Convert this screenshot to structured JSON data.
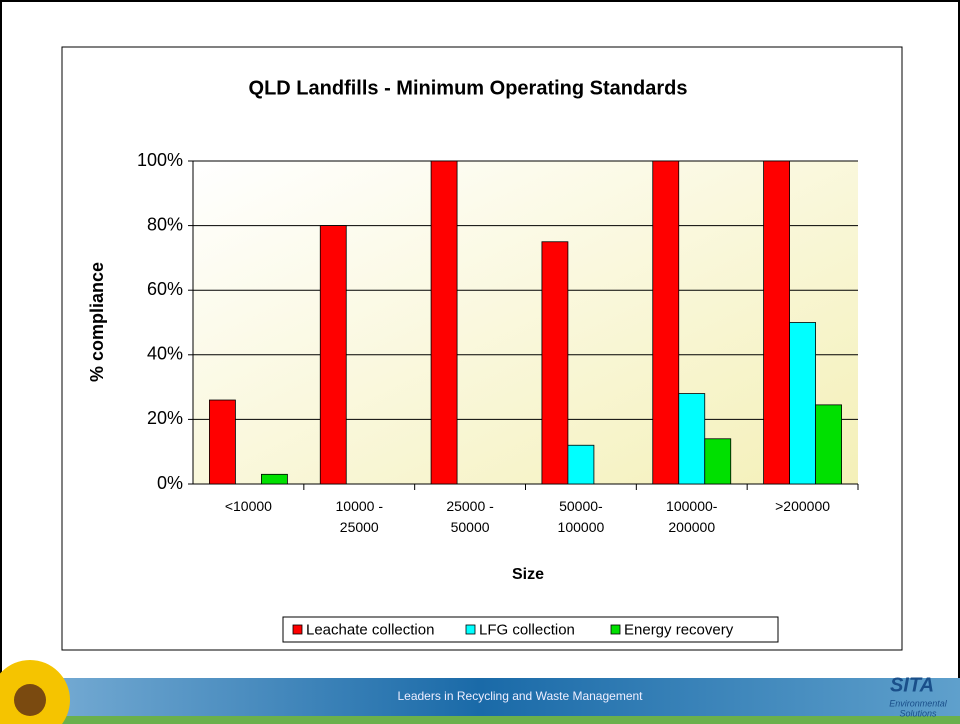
{
  "chart_data": {
    "type": "bar",
    "title": "QLD Landfills - Minimum Operating  Standards",
    "xlabel": "Size",
    "ylabel": "% compliance",
    "categories": [
      "<10000",
      "10000 - 25000",
      "25000 - 50000",
      "50000- 100000",
      "100000- 200000",
      ">200000"
    ],
    "series": [
      {
        "name": "Leachate collection",
        "color": "#ff0000",
        "values": [
          26,
          80,
          100,
          75,
          100,
          100
        ]
      },
      {
        "name": "LFG collection",
        "color": "#00ffff",
        "values": [
          0,
          0,
          0,
          12,
          28,
          50
        ]
      },
      {
        "name": "Energy recovery",
        "color": "#00e000",
        "values": [
          3,
          0,
          0,
          0,
          14,
          24.5
        ]
      }
    ],
    "ylim": [
      0,
      100
    ],
    "yticks": [
      {
        "value": 0,
        "label": "0%"
      },
      {
        "value": 20,
        "label": "20%"
      },
      {
        "value": 40,
        "label": "40%"
      },
      {
        "value": 60,
        "label": "60%"
      },
      {
        "value": 80,
        "label": "80%"
      },
      {
        "value": 100,
        "label": "100%"
      }
    ],
    "grid": true,
    "legend": "bottom"
  },
  "footer": {
    "tagline": "Leaders in Recycling and Waste Management",
    "logo": "SITA",
    "logo_sub1": "Environmental",
    "logo_sub2": "Solutions"
  }
}
